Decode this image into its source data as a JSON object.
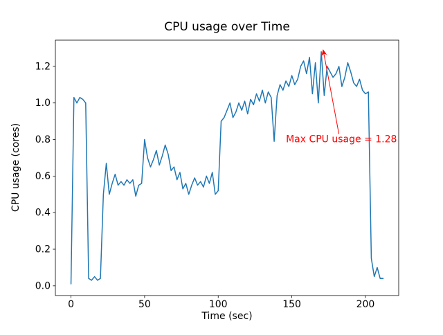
{
  "chart_data": {
    "type": "line",
    "title": "CPU usage over Time",
    "xlabel": "Time (sec)",
    "ylabel": "CPU usage (cores)",
    "line_color": "#1f77b4",
    "xlim": [
      -10.6,
      222.6
    ],
    "ylim": [
      -0.0535,
      1.3435
    ],
    "xticks": [
      0,
      50,
      100,
      150,
      200
    ],
    "yticks": [
      0.0,
      0.2,
      0.4,
      0.6,
      0.8,
      1.0,
      1.2
    ],
    "x": [
      0,
      2,
      4,
      6,
      8,
      10,
      12,
      14,
      16,
      18,
      20,
      22,
      24,
      26,
      28,
      30,
      32,
      34,
      36,
      38,
      40,
      42,
      44,
      46,
      48,
      50,
      52,
      54,
      56,
      58,
      60,
      62,
      64,
      66,
      68,
      70,
      72,
      74,
      76,
      78,
      80,
      82,
      84,
      86,
      88,
      90,
      92,
      94,
      96,
      98,
      100,
      102,
      104,
      106,
      108,
      110,
      112,
      114,
      116,
      118,
      120,
      122,
      124,
      126,
      128,
      130,
      132,
      134,
      136,
      138,
      140,
      142,
      144,
      146,
      148,
      150,
      152,
      154,
      156,
      158,
      160,
      162,
      164,
      166,
      168,
      170,
      172,
      174,
      176,
      178,
      180,
      182,
      184,
      186,
      188,
      190,
      192,
      194,
      196,
      198,
      200,
      202,
      204,
      206,
      208,
      210,
      212
    ],
    "y": [
      0.01,
      1.03,
      1.0,
      1.03,
      1.02,
      1.0,
      0.04,
      0.03,
      0.05,
      0.03,
      0.04,
      0.5,
      0.67,
      0.5,
      0.56,
      0.61,
      0.55,
      0.57,
      0.55,
      0.58,
      0.56,
      0.58,
      0.49,
      0.55,
      0.56,
      0.8,
      0.7,
      0.65,
      0.69,
      0.74,
      0.66,
      0.71,
      0.77,
      0.72,
      0.63,
      0.65,
      0.58,
      0.62,
      0.53,
      0.56,
      0.5,
      0.55,
      0.59,
      0.55,
      0.57,
      0.54,
      0.6,
      0.56,
      0.62,
      0.5,
      0.52,
      0.9,
      0.92,
      0.96,
      1.0,
      0.92,
      0.95,
      1.0,
      0.96,
      1.01,
      0.94,
      1.02,
      0.99,
      1.05,
      1.01,
      1.07,
      1.0,
      1.06,
      1.03,
      0.79,
      1.04,
      1.1,
      1.07,
      1.12,
      1.09,
      1.15,
      1.1,
      1.13,
      1.2,
      1.23,
      1.16,
      1.25,
      1.05,
      1.22,
      1.0,
      1.28,
      1.04,
      1.2,
      1.17,
      1.14,
      1.16,
      1.2,
      1.09,
      1.14,
      1.22,
      1.17,
      1.11,
      1.09,
      1.13,
      1.07,
      1.05,
      1.06,
      0.15,
      0.05,
      0.1,
      0.04,
      0.04
    ],
    "annotation": {
      "text": "Max CPU usage = 1.28",
      "color": "#ff0000",
      "text_pos": [
        146,
        0.785
      ],
      "arrow_start": [
        182,
        0.83
      ],
      "arrow_tip": [
        171.3,
        1.29
      ]
    }
  }
}
